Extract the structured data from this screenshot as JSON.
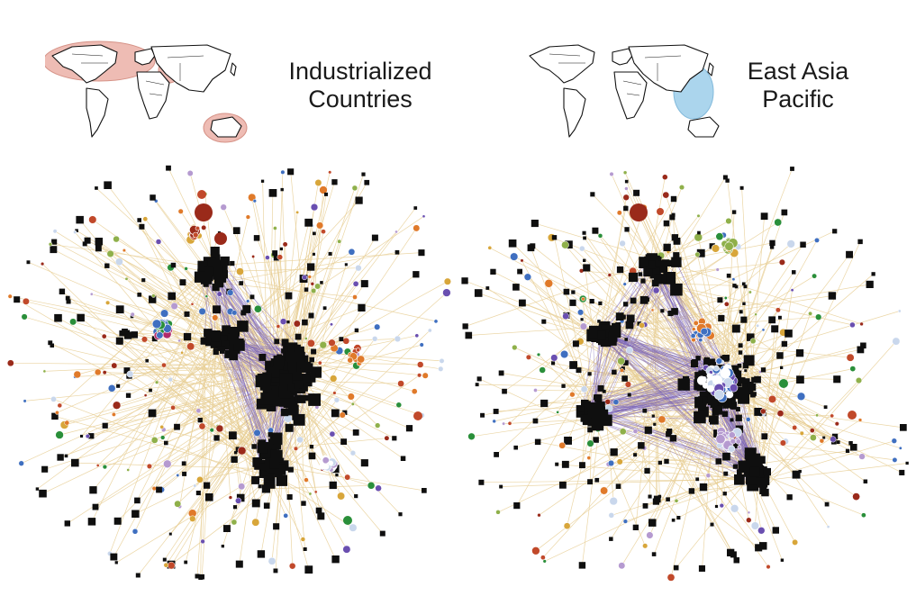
{
  "panels": [
    {
      "id": "industrialized",
      "title_line1": "Industrialized",
      "title_line2": "Countries",
      "highlight_color": "#e9a69c",
      "highlight_stroke": "#c96f60"
    },
    {
      "id": "east-asia-pacific",
      "title_line1": "East Asia",
      "title_line2": "Pacific",
      "highlight_color": "#8fc7e8",
      "highlight_stroke": "#5aa3cf"
    }
  ],
  "colors": {
    "edge_light": "#e8cf96",
    "edge_dark": "#7a64b8",
    "node_square": "#0f0f0f",
    "node_palette": [
      "#2a8f3a",
      "#c1492a",
      "#3f6fc0",
      "#b59ad0",
      "#d8a63a",
      "#8fb04a",
      "#c9d7ec",
      "#9a2a1a",
      "#e07a2a",
      "#6a4fb0"
    ]
  }
}
